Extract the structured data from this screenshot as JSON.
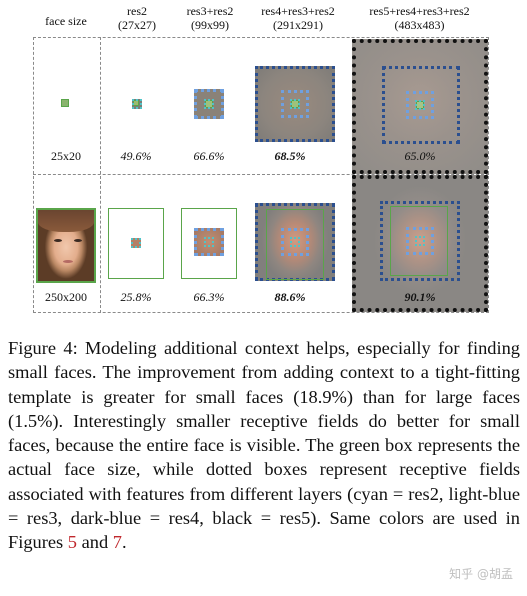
{
  "headers": [
    {
      "label": "face size",
      "sub": ""
    },
    {
      "label": "res2",
      "sub": "(27x27)"
    },
    {
      "label": "res3+res2",
      "sub": "(99x99)"
    },
    {
      "label": "res4+res3+res2",
      "sub": "(291x291)"
    },
    {
      "label": "res5+res4+res3+res2",
      "sub": "(483x483)"
    }
  ],
  "rows": [
    {
      "face_size": "25x20",
      "values": [
        "49.6%",
        "66.6%",
        "68.5%",
        "65.0%"
      ]
    },
    {
      "face_size": "250x200",
      "values": [
        "25.8%",
        "66.3%",
        "88.6%",
        "90.1%"
      ]
    }
  ],
  "caption": {
    "lead": "Figure 4: Modeling additional context helps, especially for finding small faces. The improvement from adding context to a tight-fitting template is greater for small faces (18.9%) than for large faces (1.5%). Interestingly smaller receptive fields do better for small faces, because the entire face is visible. The green box represents the actual face size, while dotted boxes represent receptive fields associated with features from different layers (cyan = res2, light-blue = res3, dark-blue = res4, black = res5). Same colors are used in Figures ",
    "ref1": "5",
    "mid": " and ",
    "ref2": "7",
    "tail": "."
  },
  "watermark": "知乎 @胡孟",
  "colors": {
    "face_box": "#5aa54a",
    "res2": "#4fc4c8",
    "res3": "#6fa0e0",
    "res4": "#2b4f8f",
    "res5": "#111111",
    "ref": "#c0282d"
  }
}
